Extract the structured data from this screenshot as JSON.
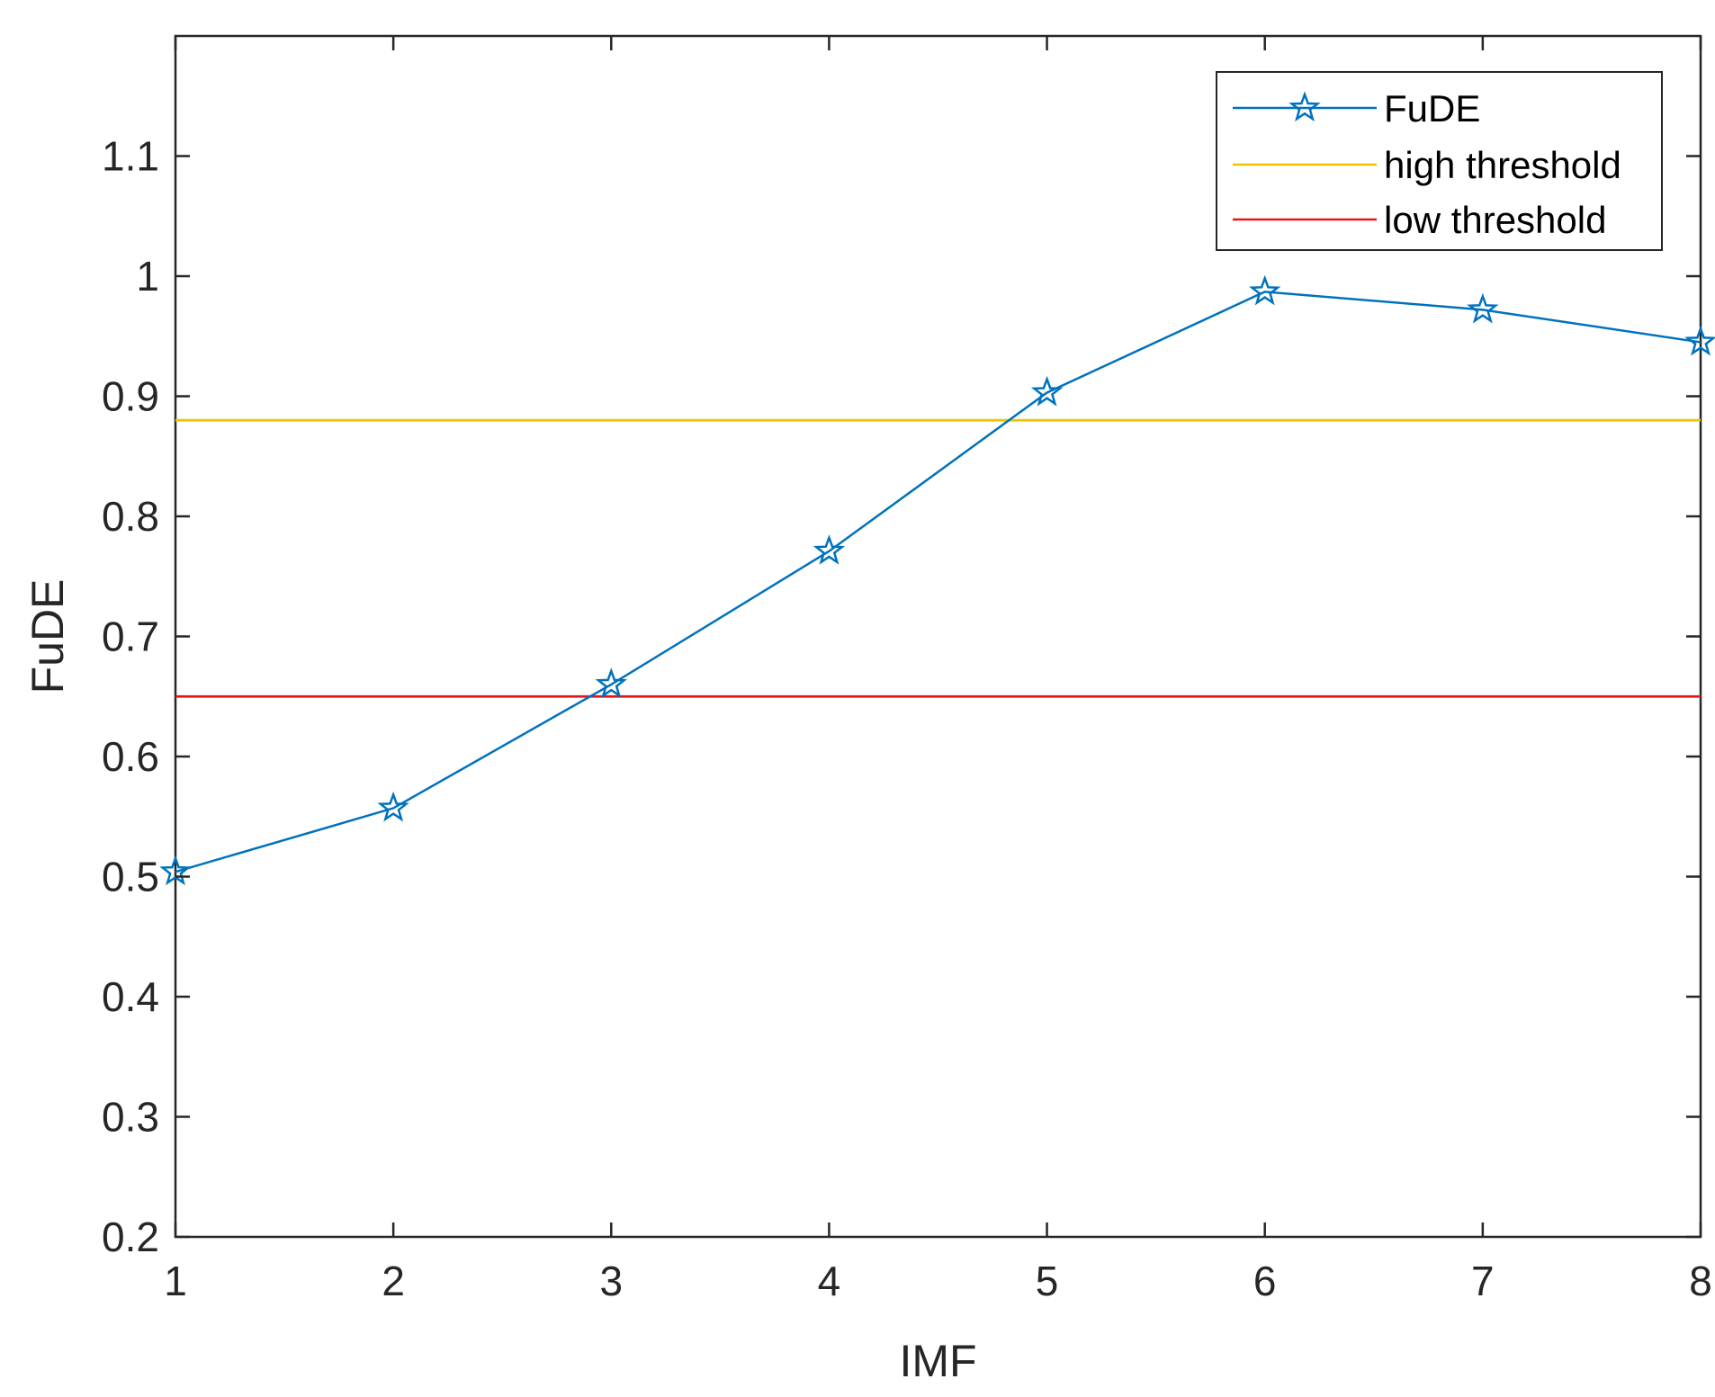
{
  "chart_data": {
    "type": "line",
    "xlabel": "IMF",
    "ylabel": "FuDE",
    "x": [
      1,
      2,
      3,
      4,
      5,
      6,
      7,
      8
    ],
    "xlim": [
      1,
      8
    ],
    "ylim": [
      0.2,
      1.2
    ],
    "xticks": [
      "1",
      "2",
      "3",
      "4",
      "5",
      "6",
      "7",
      "8"
    ],
    "yticks": [
      "0.2",
      "0.3",
      "0.4",
      "0.5",
      "0.6",
      "0.7",
      "0.8",
      "0.9",
      "1",
      "1.1"
    ],
    "grid": false,
    "legend_position": "top-right",
    "series": [
      {
        "name": "FuDE",
        "color": "#0072BD",
        "marker": "star-icon",
        "values": [
          0.504,
          0.557,
          0.66,
          0.771,
          0.903,
          0.987,
          0.972,
          0.945
        ]
      },
      {
        "name": "high threshold",
        "color": "#EDC600",
        "marker": "none",
        "values": [
          0.88,
          0.88,
          0.88,
          0.88,
          0.88,
          0.88,
          0.88,
          0.88
        ]
      },
      {
        "name": "low threshold",
        "color": "#E3161A",
        "marker": "none",
        "values": [
          0.65,
          0.65,
          0.65,
          0.65,
          0.65,
          0.65,
          0.65,
          0.65
        ]
      }
    ]
  }
}
